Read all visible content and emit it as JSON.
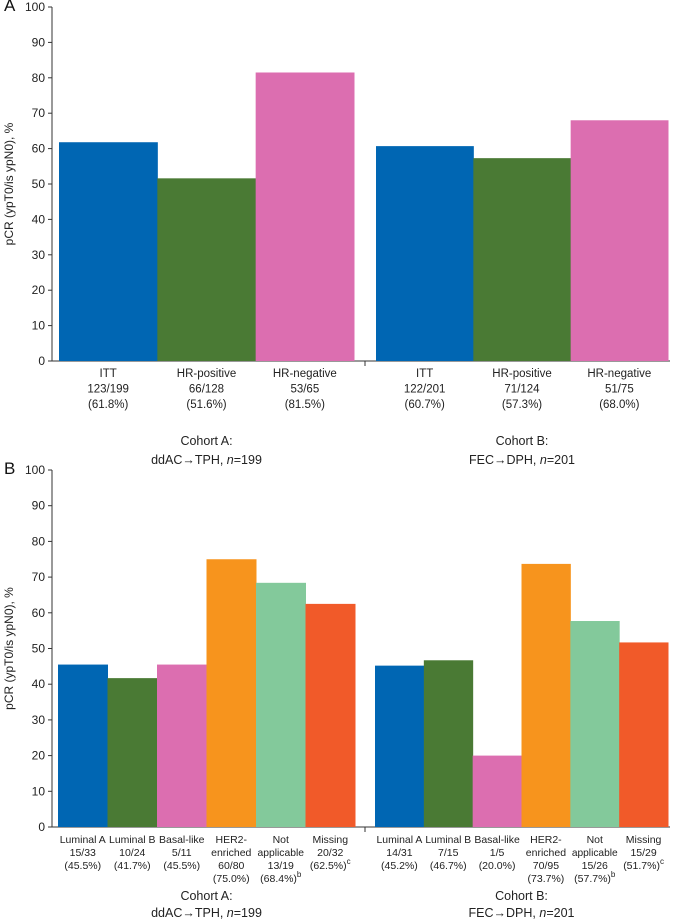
{
  "chart_data": [
    {
      "panel": "A",
      "type": "bar",
      "ylabel": "pCR (ypT0/is ypN0), %",
      "ylim": [
        0,
        100
      ],
      "yticks": [
        0,
        10,
        20,
        30,
        40,
        50,
        60,
        70,
        80,
        90,
        100
      ],
      "grid": false,
      "groups": [
        {
          "title": [
            "Cohort A:",
            "ddAC→TPH, n=199"
          ],
          "bars": [
            {
              "label": [
                "ITT",
                "123/199",
                "(61.8%)"
              ],
              "value": 61.8,
              "color": "#0066b3"
            },
            {
              "label": [
                "HR-positive",
                "66/128",
                "(51.6%)"
              ],
              "value": 51.6,
              "color": "#4a7a34"
            },
            {
              "label": [
                "HR-negative",
                "53/65",
                "(81.5%)"
              ],
              "value": 81.5,
              "color": "#dc6eb0"
            }
          ]
        },
        {
          "title": [
            "Cohort B:",
            "FEC→DPH, n=201"
          ],
          "bars": [
            {
              "label": [
                "ITT",
                "122/201",
                "(60.7%)"
              ],
              "value": 60.7,
              "color": "#0066b3"
            },
            {
              "label": [
                "HR-positive",
                "71/124",
                "(57.3%)"
              ],
              "value": 57.3,
              "color": "#4a7a34"
            },
            {
              "label": [
                "HR-negative",
                "51/75",
                "(68.0%)"
              ],
              "value": 68.0,
              "color": "#dc6eb0"
            }
          ]
        }
      ]
    },
    {
      "panel": "B",
      "type": "bar",
      "ylabel": "pCR (ypT0/is ypN0), %",
      "ylim": [
        0,
        100
      ],
      "yticks": [
        0,
        10,
        20,
        30,
        40,
        50,
        60,
        70,
        80,
        90,
        100
      ],
      "grid": false,
      "groups": [
        {
          "title": [
            "Cohort A:",
            "ddAC→TPH, n=199"
          ],
          "bars": [
            {
              "label": [
                "Luminal A",
                "15/33",
                "(45.5%)"
              ],
              "value": 45.5,
              "color": "#0066b3"
            },
            {
              "label": [
                "Luminal B",
                "10/24",
                "(41.7%)"
              ],
              "value": 41.7,
              "color": "#4a7a34"
            },
            {
              "label": [
                "Basal-like",
                "5/11",
                "(45.5%)"
              ],
              "value": 45.5,
              "color": "#dc6eb0"
            },
            {
              "label": [
                "HER2-",
                "enriched",
                "60/80",
                "(75.0%)"
              ],
              "value": 75.0,
              "color": "#f7941d"
            },
            {
              "label": [
                "Not",
                "applicable",
                "13/19",
                "(68.4%)"
              ],
              "value": 68.4,
              "color": "#83c99b",
              "sup": "b"
            },
            {
              "label": [
                "Missing",
                "20/32",
                "(62.5%)"
              ],
              "value": 62.5,
              "color": "#f15a29",
              "sup": "c"
            }
          ]
        },
        {
          "title": [
            "Cohort B:",
            "FEC→DPH, n=201"
          ],
          "bars": [
            {
              "label": [
                "Luminal A",
                "14/31",
                "(45.2%)"
              ],
              "value": 45.2,
              "color": "#0066b3"
            },
            {
              "label": [
                "Luminal B",
                "7/15",
                "(46.7%)"
              ],
              "value": 46.7,
              "color": "#4a7a34"
            },
            {
              "label": [
                "Basal-like",
                "1/5",
                "(20.0%)"
              ],
              "value": 20.0,
              "color": "#dc6eb0"
            },
            {
              "label": [
                "HER2-",
                "enriched",
                "70/95",
                "(73.7%)"
              ],
              "value": 73.7,
              "color": "#f7941d"
            },
            {
              "label": [
                "Not",
                "applicable",
                "15/26",
                "(57.7%)"
              ],
              "value": 57.7,
              "color": "#83c99b",
              "sup": "b"
            },
            {
              "label": [
                "Missing",
                "15/29",
                "(51.7%)"
              ],
              "value": 51.7,
              "color": "#f15a29",
              "sup": "c"
            }
          ]
        }
      ]
    }
  ]
}
